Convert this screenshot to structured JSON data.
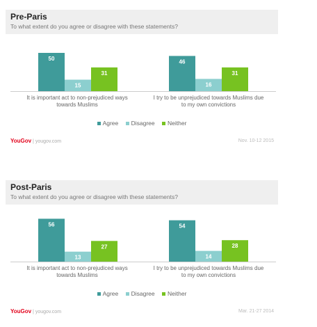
{
  "colors": {
    "agree": "#3f9b9a",
    "disagree": "#8ccfcf",
    "neither": "#77c221"
  },
  "brand": {
    "name": "YouGov",
    "site": "yougov.com",
    "separator": "|"
  },
  "chart_data": [
    {
      "type": "bar",
      "title": "Pre-Paris",
      "subtitle": "To what extent do you agree or disagree with these statements?",
      "categories": [
        [
          "It is important act to non-prejudiced ways",
          "towards Muslims"
        ],
        [
          "I try to be unprejudiced towards Muslims due",
          "to my own convictions"
        ]
      ],
      "series": [
        {
          "name": "Agree",
          "values": [
            50,
            46
          ]
        },
        {
          "name": "Disagree",
          "values": [
            15,
            16
          ]
        },
        {
          "name": "Neither",
          "values": [
            31,
            31
          ]
        }
      ],
      "ylim": [
        0,
        60
      ],
      "grid": false,
      "legend": "bottom",
      "date": "Nov. 10-12 2015"
    },
    {
      "type": "bar",
      "title": "Post-Paris",
      "subtitle": "To what extent do you agree or disagree with these statements?",
      "categories": [
        [
          "It is important act to non-prejudiced ways",
          "towards Muslims"
        ],
        [
          "I try to be unprejudiced towards Muslims due",
          "to my own convictions"
        ]
      ],
      "series": [
        {
          "name": "Agree",
          "values": [
            56,
            54
          ]
        },
        {
          "name": "Disagree",
          "values": [
            13,
            14
          ]
        },
        {
          "name": "Neither",
          "values": [
            27,
            28
          ]
        }
      ],
      "ylim": [
        0,
        60
      ],
      "grid": false,
      "legend": "bottom",
      "date": "Mar. 21-27 2014"
    }
  ]
}
